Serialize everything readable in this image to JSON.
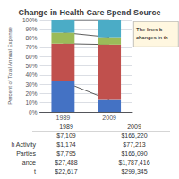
{
  "chart_data": {
    "type": "bar",
    "title": "Change in Health Care Spend Source",
    "categories": [
      "1989",
      "2009"
    ],
    "stacked": true,
    "series": [
      {
        "color": "#4472c4",
        "values": [
          33,
          13
        ]
      },
      {
        "color": "#c0504d",
        "values": [
          41,
          60
        ]
      },
      {
        "color": "#9bbb59",
        "values": [
          12,
          8
        ]
      },
      {
        "color": "#4bacc6",
        "values": [
          14,
          19
        ]
      }
    ],
    "ylabel": "Percent of Total Annual Expense",
    "ylim": [
      0,
      100
    ],
    "yticks": [
      {
        "value": 0,
        "label": "0%"
      },
      {
        "value": 10,
        "label": "10%"
      },
      {
        "value": 20,
        "label": "20%"
      },
      {
        "value": 30,
        "label": "30%"
      },
      {
        "value": 40,
        "label": "40%"
      },
      {
        "value": 50,
        "label": "50%"
      },
      {
        "value": 60,
        "label": "60%"
      },
      {
        "value": 70,
        "label": "70%"
      },
      {
        "value": 80,
        "label": "80%"
      },
      {
        "value": 90,
        "label": "90%"
      },
      {
        "value": 100,
        "label": "100%"
      }
    ],
    "grid": true,
    "annotation": "The lines b\nchanges in th",
    "table": {
      "header": [
        "1989",
        "2009"
      ],
      "rows": [
        [
          null,
          "$7,109",
          "$166,220"
        ],
        [
          "h Activity",
          "$1,174",
          "$77,213"
        ],
        [
          "Parties",
          "$7,795",
          "$166,090"
        ],
        [
          "ance",
          "$27,488",
          "$1,787,416"
        ],
        [
          "t",
          "$22,617",
          "$299,345"
        ]
      ]
    }
  }
}
